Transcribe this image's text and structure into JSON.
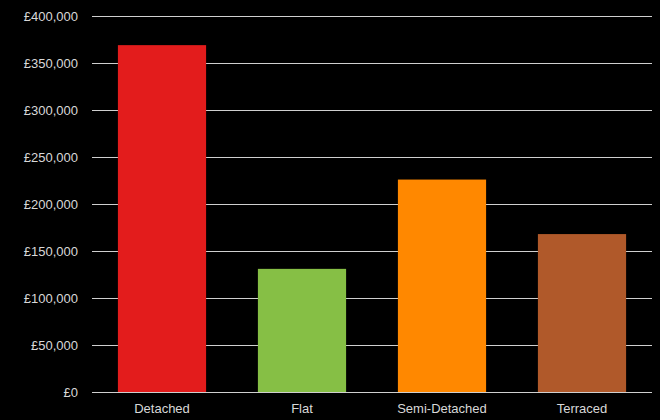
{
  "chart_data": {
    "type": "bar",
    "categories": [
      "Detached",
      "Flat",
      "Semi-Detached",
      "Terraced"
    ],
    "values": [
      369000,
      131000,
      226000,
      168000
    ],
    "colors": [
      "#e31c1c",
      "#86bf45",
      "#ff8800",
      "#b0592a"
    ],
    "ylim": [
      0,
      400000
    ],
    "yticks": [
      {
        "value": 0,
        "label": "£0"
      },
      {
        "value": 50000,
        "label": "£50,000"
      },
      {
        "value": 100000,
        "label": "£100,000"
      },
      {
        "value": 150000,
        "label": "£150,000"
      },
      {
        "value": 200000,
        "label": "£200,000"
      },
      {
        "value": 250000,
        "label": "£250,000"
      },
      {
        "value": 300000,
        "label": "£300,000"
      },
      {
        "value": 350000,
        "label": "£350,000"
      },
      {
        "value": 400000,
        "label": "£400,000"
      }
    ],
    "grid": true
  }
}
